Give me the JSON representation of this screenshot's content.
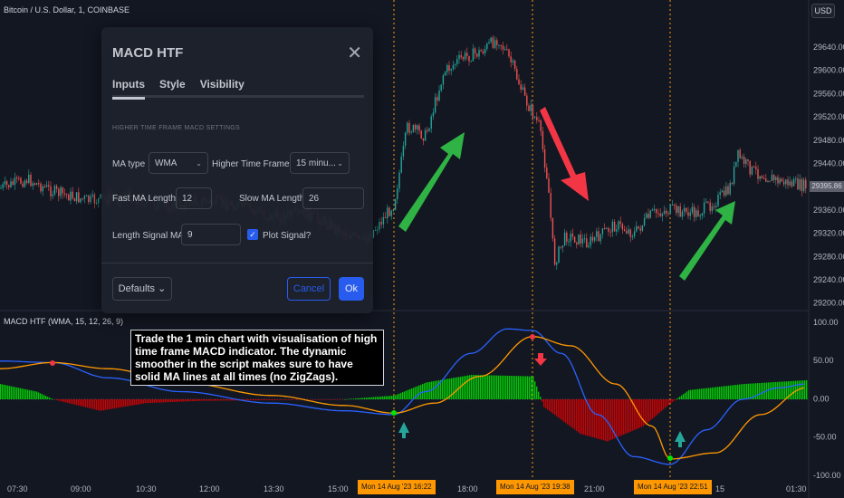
{
  "chart_header": {
    "symbol_line": "Bitcoin / U.S. Dollar, 1, COINBASE",
    "currency": "USD"
  },
  "indicator_header": "MACD HTF (WMA, 15, 12, 26, 9)",
  "price_tag": "29395.86",
  "annotation": "Trade the 1 min chart with visualisation of high time frame MACD indicator. The dynamic smoother in the script makes sure to have solid MA lines at all times (no ZigZags).",
  "price_axis": [
    "29640.00",
    "29600.00",
    "29560.00",
    "29520.00",
    "29480.00",
    "29440.00",
    "29400.00",
    "29360.00",
    "29320.00",
    "29280.00",
    "29240.00",
    "29200.00"
  ],
  "macd_axis": [
    "100.00",
    "50.00",
    "0.00",
    "-50.00",
    "-100.00"
  ],
  "time_axis": [
    "07:30",
    "09:00",
    "10:30",
    "12:00",
    "13:30",
    "15:00",
    "18:00",
    "21:00",
    "15",
    "01:30"
  ],
  "time_tags": [
    "Mon 14 Aug '23   16:22",
    "Mon 14 Aug '23   19:38",
    "Mon 14 Aug '23   22:51"
  ],
  "dialog": {
    "title": "MACD HTF",
    "tabs": [
      "Inputs",
      "Style",
      "Visibility"
    ],
    "section": "HIGHER TIME FRAME MACD SETTINGS",
    "ma_type_label": "MA type",
    "ma_type_value": "WMA",
    "htf_label": "Higher Time Frame",
    "htf_value": "15 minu...",
    "fast_label": "Fast MA Length",
    "fast_value": "12",
    "slow_label": "Slow MA Length",
    "slow_value": "26",
    "signal_label": "Length Signal MA",
    "signal_value": "9",
    "plot_signal_label": "Plot Signal?",
    "plot_signal_checked": true,
    "defaults_label": "Defaults",
    "cancel_label": "Cancel",
    "ok_label": "Ok"
  },
  "colors": {
    "bg": "#131722",
    "up": "#26a69a",
    "down": "#ef5350",
    "macd": "#2962ff",
    "signal": "#ff9800",
    "hist_up": "#00e600",
    "hist_down": "#e60000",
    "arrow_green": "#2fb344",
    "arrow_red": "#f23645"
  }
}
